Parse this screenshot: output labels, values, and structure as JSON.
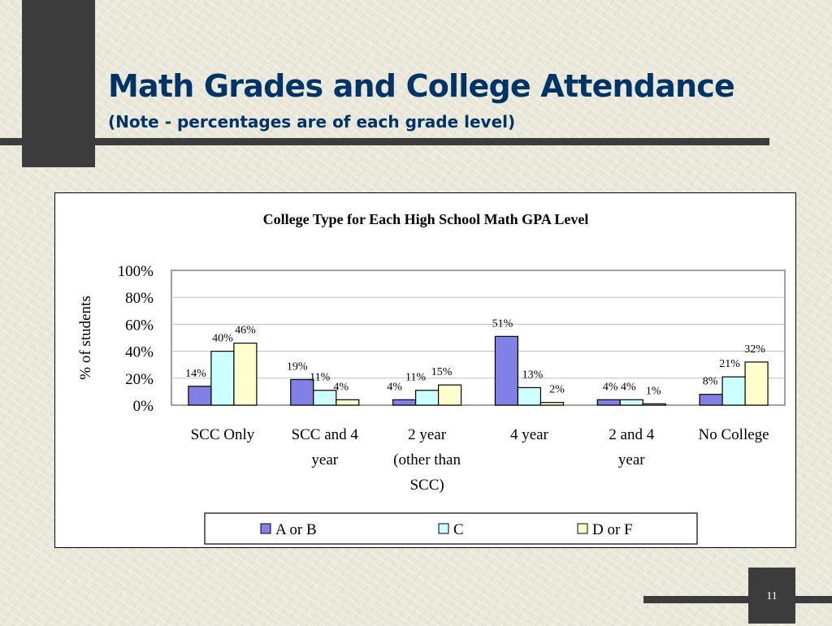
{
  "slide": {
    "title": "Math Grades and College Attendance",
    "subtitle": "(Note - percentages are of each grade level)",
    "page_number": "11"
  },
  "chart_data": {
    "type": "bar",
    "title": "College Type for Each High School Math GPA Level",
    "xlabel": "",
    "ylabel": "% of students",
    "ylim": [
      0,
      100
    ],
    "yticks": [
      "0%",
      "20%",
      "40%",
      "60%",
      "80%",
      "100%"
    ],
    "grid": true,
    "legend_position": "bottom",
    "categories": [
      [
        "SCC Only"
      ],
      [
        "SCC and 4",
        "year"
      ],
      [
        "2 year",
        "(other than",
        "SCC)"
      ],
      [
        "4 year"
      ],
      [
        "2 and  4",
        "year"
      ],
      [
        "No College"
      ]
    ],
    "series": [
      {
        "name": "A or B",
        "color": "#8080e6",
        "values": [
          14,
          19,
          4,
          51,
          4,
          8
        ],
        "labels": [
          "14%",
          "19%",
          "4%",
          "51%",
          "4%",
          "8%"
        ]
      },
      {
        "name": "C",
        "color": "#ccffff",
        "values": [
          40,
          11,
          11,
          13,
          4,
          21
        ],
        "labels": [
          "40%",
          "11%",
          "11%",
          "13%",
          "4%",
          "21%"
        ]
      },
      {
        "name": "D or F",
        "color": "#ffffcc",
        "values": [
          46,
          4,
          15,
          2,
          1,
          32
        ],
        "labels": [
          "46%",
          "4%",
          "15%",
          "2%",
          "1%",
          "32%"
        ]
      }
    ]
  }
}
